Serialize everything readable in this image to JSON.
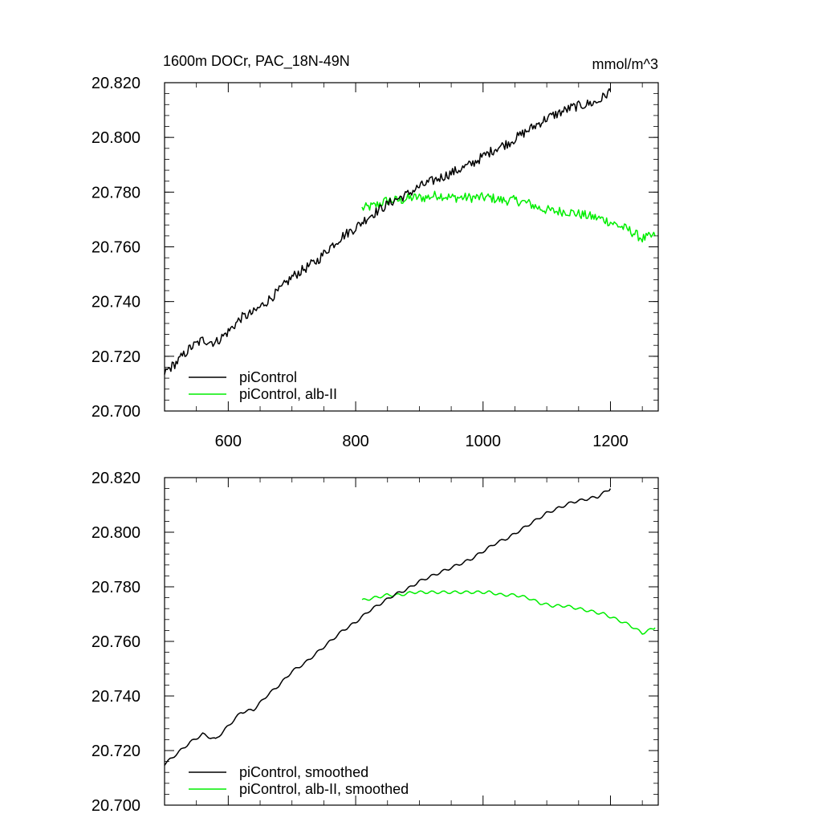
{
  "title": "1600m DOCr, PAC_18N-49N",
  "units": "mmol/m^3",
  "colors": {
    "control": "#000000",
    "alb": "#00ee00"
  },
  "chart_data": [
    {
      "type": "line",
      "panel": "raw",
      "xlim": [
        500,
        1275
      ],
      "ylim": [
        20.7,
        20.82
      ],
      "x_ticks": [
        600,
        800,
        1000,
        1200
      ],
      "x_tick_labels": [
        "600",
        "800",
        "1000",
        "1200"
      ],
      "y_ticks": [
        20.7,
        20.72,
        20.74,
        20.76,
        20.78,
        20.8,
        20.82
      ],
      "y_tick_labels": [
        "20.700",
        "20.720",
        "20.740",
        "20.760",
        "20.780",
        "20.800",
        "20.820"
      ],
      "legend": [
        "piControl",
        "piControl, alb-II"
      ],
      "legend_position": "bottom-left",
      "series": [
        {
          "name": "piControl",
          "color": "#000000",
          "x": [
            500,
            520,
            540,
            560,
            580,
            600,
            620,
            640,
            660,
            680,
            700,
            720,
            740,
            760,
            780,
            800,
            820,
            840,
            860,
            880,
            900,
            920,
            940,
            960,
            980,
            1000,
            1020,
            1040,
            1060,
            1080,
            1100,
            1120,
            1140,
            1160,
            1180,
            1200
          ],
          "y": [
            20.714,
            20.718,
            20.723,
            20.726,
            20.725,
            20.729,
            20.734,
            20.736,
            20.74,
            20.744,
            20.749,
            20.752,
            20.755,
            20.76,
            20.764,
            20.767,
            20.771,
            20.774,
            20.777,
            20.779,
            20.782,
            20.784,
            20.786,
            20.788,
            20.79,
            20.793,
            20.796,
            20.798,
            20.801,
            20.804,
            20.807,
            20.809,
            20.811,
            20.812,
            20.813,
            20.817
          ]
        },
        {
          "name": "piControl, alb-II",
          "color": "#00ee00",
          "x": [
            810,
            830,
            850,
            870,
            890,
            910,
            930,
            950,
            970,
            990,
            1010,
            1030,
            1050,
            1070,
            1090,
            1110,
            1130,
            1150,
            1170,
            1190,
            1210,
            1230,
            1250,
            1270
          ],
          "y": [
            20.774,
            20.775,
            20.777,
            20.777,
            20.778,
            20.778,
            20.779,
            20.778,
            20.778,
            20.778,
            20.778,
            20.777,
            20.777,
            20.776,
            20.774,
            20.773,
            20.773,
            20.772,
            20.771,
            20.77,
            20.768,
            20.766,
            20.763,
            20.764
          ]
        }
      ]
    },
    {
      "type": "line",
      "panel": "smoothed",
      "xlim": [
        500,
        1275
      ],
      "ylim": [
        20.7,
        20.82
      ],
      "x_ticks": [
        600,
        800,
        1000,
        1200
      ],
      "y_ticks": [
        20.7,
        20.72,
        20.74,
        20.76,
        20.78,
        20.8,
        20.82
      ],
      "y_tick_labels": [
        "20.700",
        "20.720",
        "20.740",
        "20.760",
        "20.780",
        "20.800",
        "20.820"
      ],
      "legend": [
        "piControl, smoothed",
        "piControl, alb-II, smoothed"
      ],
      "legend_position": "bottom-left",
      "series": [
        {
          "name": "piControl, smoothed",
          "color": "#000000",
          "x": [
            500,
            520,
            540,
            560,
            580,
            600,
            620,
            640,
            660,
            680,
            700,
            720,
            740,
            760,
            780,
            800,
            820,
            840,
            860,
            880,
            900,
            920,
            940,
            960,
            980,
            1000,
            1020,
            1040,
            1060,
            1080,
            1100,
            1120,
            1140,
            1160,
            1180,
            1200
          ],
          "y": [
            20.715,
            20.719,
            20.723,
            20.726,
            20.724,
            20.729,
            20.734,
            20.735,
            20.74,
            20.744,
            20.749,
            20.752,
            20.756,
            20.76,
            20.764,
            20.767,
            20.771,
            20.774,
            20.777,
            20.779,
            20.782,
            20.784,
            20.786,
            20.788,
            20.79,
            20.793,
            20.796,
            20.798,
            20.801,
            20.804,
            20.807,
            20.809,
            20.811,
            20.812,
            20.813,
            20.816
          ]
        },
        {
          "name": "piControl, alb-II, smoothed",
          "color": "#00ee00",
          "x": [
            810,
            830,
            850,
            870,
            890,
            910,
            930,
            950,
            970,
            990,
            1010,
            1030,
            1050,
            1070,
            1090,
            1110,
            1130,
            1150,
            1170,
            1190,
            1210,
            1230,
            1250,
            1270
          ],
          "y": [
            20.775,
            20.776,
            20.777,
            20.777,
            20.778,
            20.778,
            20.778,
            20.778,
            20.778,
            20.778,
            20.778,
            20.777,
            20.777,
            20.776,
            20.774,
            20.773,
            20.773,
            20.772,
            20.771,
            20.77,
            20.768,
            20.766,
            20.763,
            20.765
          ]
        }
      ]
    }
  ]
}
